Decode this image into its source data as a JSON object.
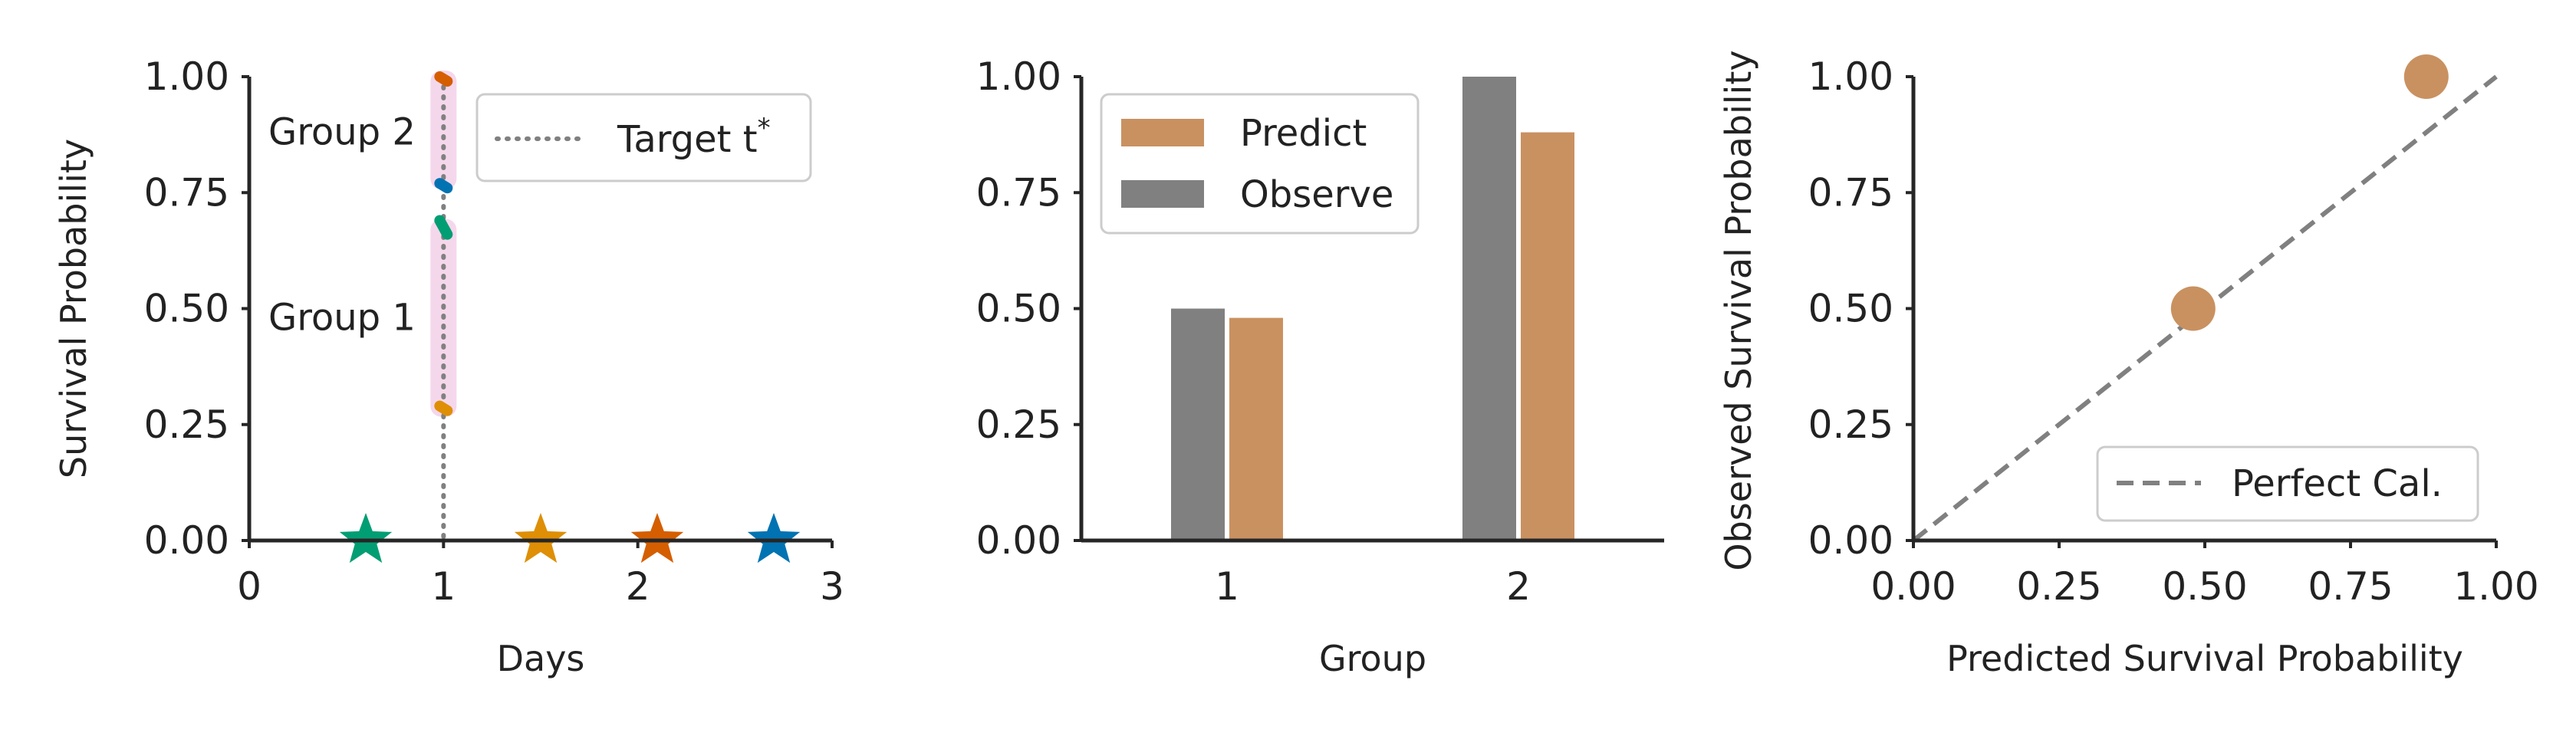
{
  "colors": {
    "predict": "#c99160",
    "observe": "#808080",
    "green": "#029e73",
    "gold": "#de8f05",
    "orange": "#d55e00",
    "blue": "#0173b2",
    "pink_band": "#f5d7ec",
    "reference": "#808080"
  },
  "chart_data": [
    {
      "type": "scatter",
      "title": "",
      "xlabel": "Days",
      "ylabel": "Survival Probability",
      "xlim": [
        0,
        3
      ],
      "ylim": [
        0,
        1
      ],
      "xticks": [
        "0",
        "1",
        "2",
        "3"
      ],
      "yticks": [
        "0.00",
        "0.25",
        "0.50",
        "0.75",
        "1.00"
      ],
      "target_time": 1,
      "legend": {
        "label": "Target t",
        "superscript": "*",
        "placement": "top-right"
      },
      "group_labels": [
        {
          "text": "Group 2",
          "y": 0.88
        },
        {
          "text": "Group 1",
          "y": 0.48
        }
      ],
      "events": [
        {
          "x": 0.6,
          "color_key": "green"
        },
        {
          "x": 1.5,
          "color_key": "gold"
        },
        {
          "x": 2.1,
          "color_key": "orange"
        },
        {
          "x": 2.7,
          "color_key": "blue"
        }
      ],
      "bands": [
        {
          "group": "Group 2",
          "y_range": [
            0.77,
            1.0
          ]
        },
        {
          "group": "Group 1",
          "y_range": [
            0.28,
            0.68
          ]
        }
      ],
      "curve_segments": [
        {
          "color_key": "orange",
          "y_range": [
            0.99,
            1.0
          ]
        },
        {
          "color_key": "blue",
          "y_range": [
            0.76,
            0.77
          ]
        },
        {
          "color_key": "green",
          "y_range": [
            0.66,
            0.69
          ]
        },
        {
          "color_key": "gold",
          "y_range": [
            0.28,
            0.29
          ]
        }
      ]
    },
    {
      "type": "bar",
      "title": "",
      "xlabel": "Group",
      "ylabel": "",
      "categories": [
        "1",
        "2"
      ],
      "ylim": [
        0,
        1
      ],
      "yticks": [
        "0.00",
        "0.25",
        "0.50",
        "0.75",
        "1.00"
      ],
      "legend_placement": "top-left",
      "series": [
        {
          "name": "Observe",
          "values": [
            0.5,
            1.0
          ],
          "color_key": "observe"
        },
        {
          "name": "Predict",
          "values": [
            0.48,
            0.88
          ],
          "color_key": "predict"
        }
      ],
      "legend_order": [
        "Predict",
        "Observe"
      ]
    },
    {
      "type": "scatter",
      "title": "",
      "xlabel": "Predicted Survival Probability",
      "ylabel": "Observed Survival Probability",
      "xlim": [
        0,
        1
      ],
      "ylim": [
        0,
        1
      ],
      "xticks": [
        "0.00",
        "0.25",
        "0.50",
        "0.75",
        "1.00"
      ],
      "yticks": [
        "0.00",
        "0.25",
        "0.50",
        "0.75",
        "1.00"
      ],
      "legend": {
        "label": "Perfect Cal.",
        "placement": "bottom-right"
      },
      "points": [
        {
          "x": 0.48,
          "y": 0.5
        },
        {
          "x": 0.88,
          "y": 1.0
        }
      ]
    }
  ]
}
